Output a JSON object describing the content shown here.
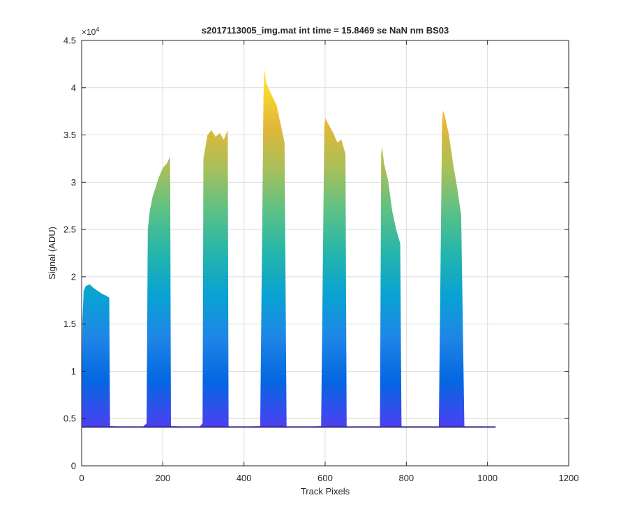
{
  "chart_data": {
    "type": "area",
    "title": "s2017113005_img.mat int time = 15.8469 se  NaN nm BS03",
    "xlabel": "Track Pixels",
    "ylabel": "Signal (ADU)",
    "y_exponent_label": "×10",
    "y_exponent_power": "4",
    "xlim": [
      0,
      1200
    ],
    "ylim": [
      0,
      4.5
    ],
    "y_scale_factor": 10000,
    "x_ticks": [
      0,
      200,
      400,
      600,
      800,
      1000,
      1200
    ],
    "y_ticks": [
      0,
      0.5,
      1,
      1.5,
      2,
      2.5,
      3,
      3.5,
      4,
      4.5
    ],
    "x_tick_labels": [
      "0",
      "200",
      "400",
      "600",
      "800",
      "1000",
      "1200"
    ],
    "y_tick_labels": [
      "0",
      "0.5",
      "1",
      "1.5",
      "2",
      "2.5",
      "3",
      "3.5",
      "4",
      "4.5"
    ],
    "grid": true,
    "baseline": 0.41,
    "colormap": [
      "#3e26a8",
      "#4743f0",
      "#0567e1",
      "#1f85e6",
      "#09a2d3",
      "#24b5ab",
      "#5cc186",
      "#a9bf5a",
      "#e3b737",
      "#fbdf2d",
      "#f9fb0e"
    ],
    "line_color": "#352a87",
    "x": [
      0,
      2,
      5,
      10,
      20,
      30,
      40,
      50,
      60,
      68,
      70,
      150,
      160,
      163,
      168,
      175,
      190,
      200,
      210,
      218,
      220,
      290,
      298,
      300,
      310,
      320,
      330,
      340,
      350,
      360,
      362,
      370,
      440,
      448,
      450,
      455,
      465,
      480,
      490,
      500,
      505,
      510,
      590,
      598,
      600,
      610,
      620,
      630,
      640,
      650,
      653,
      660,
      735,
      738,
      740,
      745,
      755,
      765,
      775,
      785,
      788,
      795,
      880,
      888,
      890,
      895,
      905,
      915,
      925,
      935,
      943,
      950,
      1000,
      1020
    ],
    "y": [
      0.9,
      1.55,
      1.85,
      1.9,
      1.92,
      1.88,
      1.85,
      1.82,
      1.8,
      1.78,
      0.42,
      0.41,
      0.45,
      2.5,
      2.7,
      2.85,
      3.05,
      3.15,
      3.2,
      3.27,
      0.42,
      0.41,
      0.45,
      3.25,
      3.5,
      3.55,
      3.48,
      3.52,
      3.45,
      3.55,
      0.42,
      0.41,
      0.42,
      3.9,
      4.2,
      4.05,
      3.95,
      3.82,
      3.62,
      3.42,
      0.42,
      0.41,
      0.42,
      3.6,
      3.68,
      3.6,
      3.52,
      3.42,
      3.45,
      3.3,
      0.42,
      0.41,
      0.41,
      3.3,
      3.38,
      3.2,
      3.02,
      2.7,
      2.5,
      2.35,
      0.42,
      0.41,
      0.41,
      3.62,
      3.76,
      3.7,
      3.5,
      3.2,
      2.95,
      2.65,
      0.42,
      0.41,
      0.41,
      0.41
    ]
  }
}
